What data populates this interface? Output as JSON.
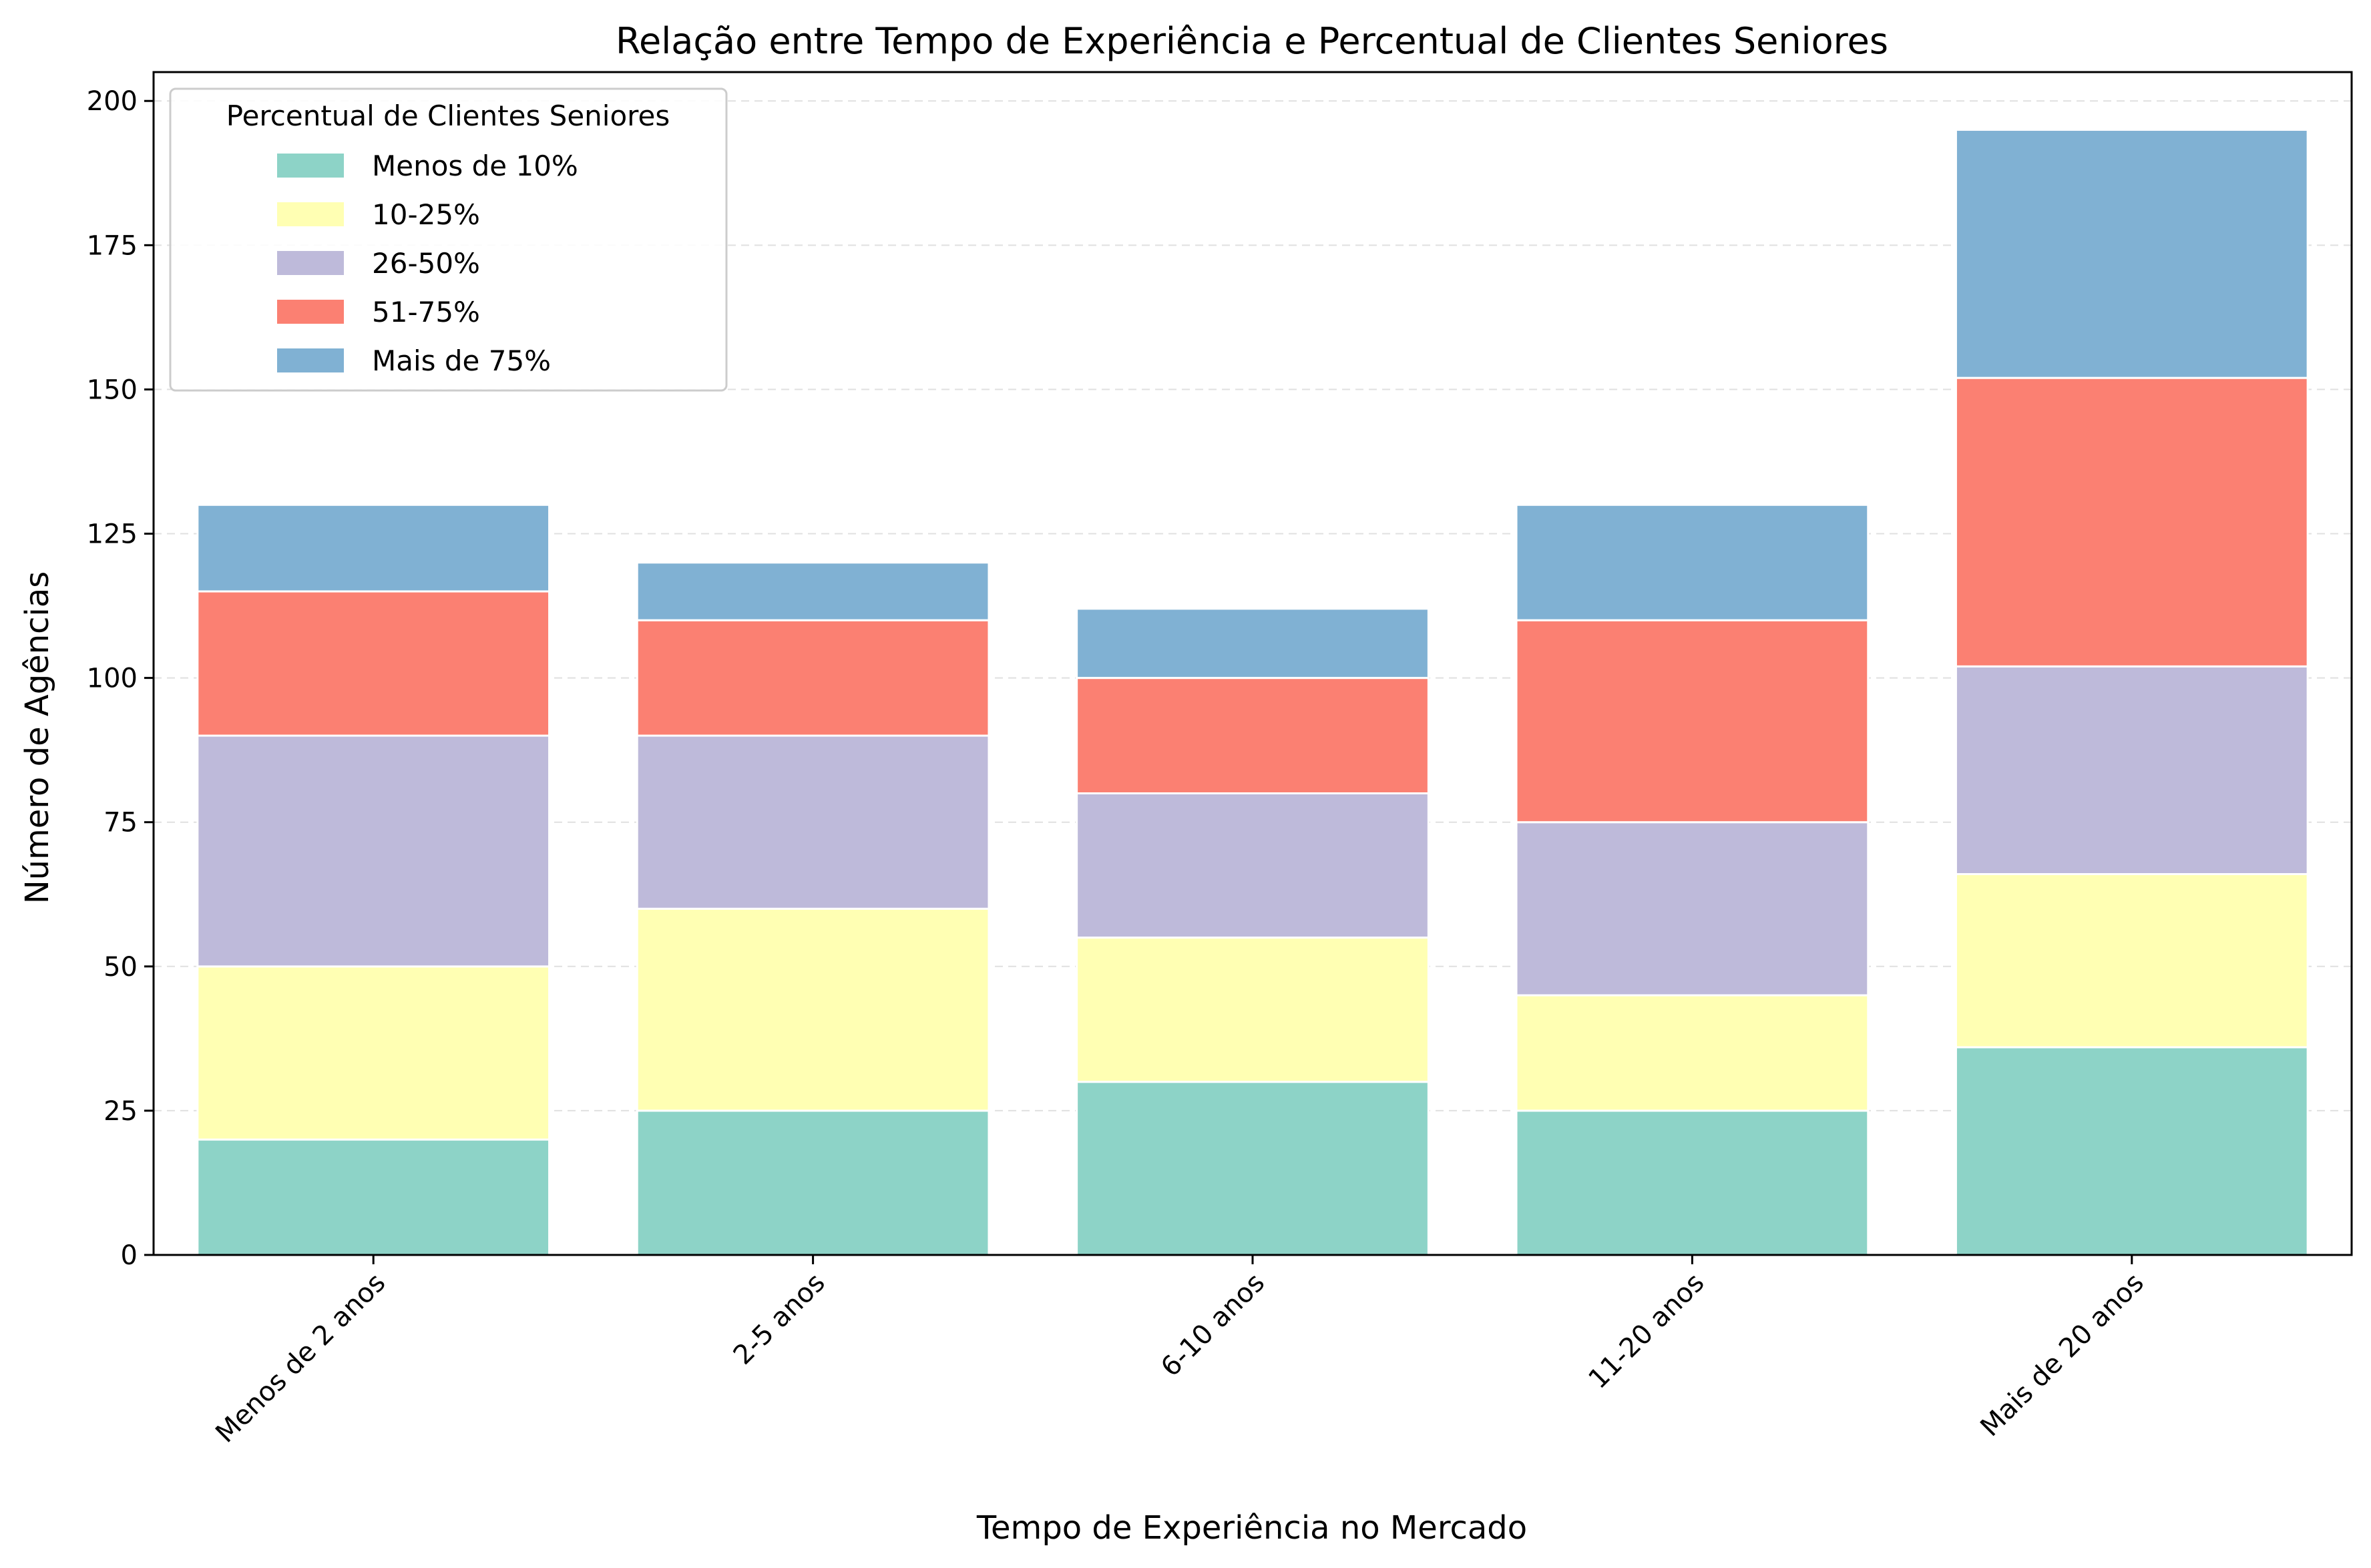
{
  "chart_data": {
    "type": "bar",
    "stacked": true,
    "title": "Relação entre Tempo de Experiência e Percentual de Clientes Seniores",
    "xlabel": "Tempo de Experiência no Mercado",
    "ylabel": "Número de Agências",
    "categories": [
      "Menos de 2 anos",
      "2-5 anos",
      "6-10 anos",
      "11-20 anos",
      "Mais de 20 anos"
    ],
    "series": [
      {
        "name": "Menos de 10%",
        "color": "#8dd3c7",
        "values": [
          20,
          25,
          30,
          25,
          36
        ]
      },
      {
        "name": "10-25%",
        "color": "#ffffb3",
        "values": [
          30,
          35,
          25,
          20,
          30
        ]
      },
      {
        "name": "26-50%",
        "color": "#bebada",
        "values": [
          40,
          30,
          25,
          30,
          36
        ]
      },
      {
        "name": "51-75%",
        "color": "#fb8072",
        "values": [
          25,
          20,
          20,
          35,
          50
        ]
      },
      {
        "name": "Mais de 75%",
        "color": "#80b1d3",
        "values": [
          15,
          10,
          12,
          20,
          43
        ]
      }
    ],
    "ylim": [
      0,
      205
    ],
    "yticks": [
      0,
      25,
      50,
      75,
      100,
      125,
      150,
      175,
      200
    ],
    "grid": "y-dashed",
    "legend": {
      "title": "Percentual de Clientes Seniores",
      "placement": "top-left"
    }
  }
}
